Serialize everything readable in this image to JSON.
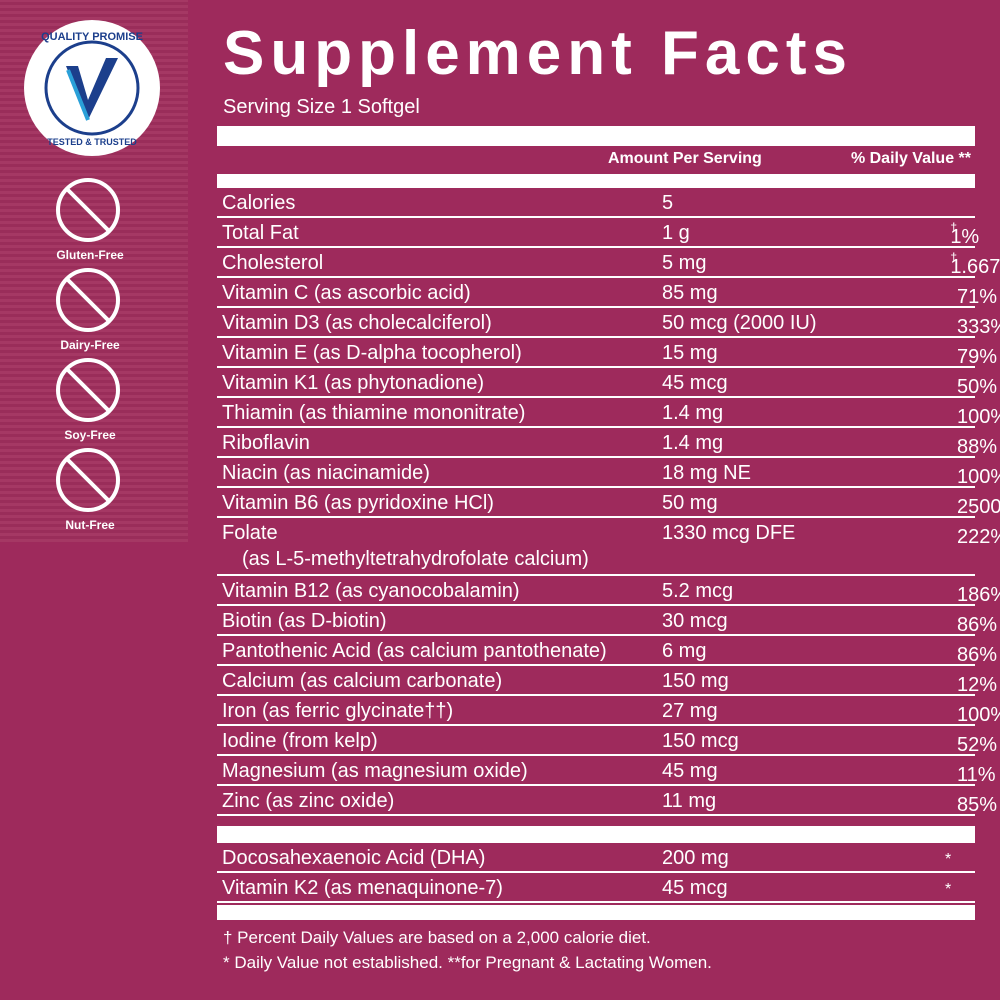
{
  "badges": {
    "quality": {
      "top": "QUALITY PROMISE",
      "bottom": "TESTED & TRUSTED"
    },
    "items": [
      "Gluten-Free",
      "Dairy-Free",
      "Soy-Free",
      "Nut-Free"
    ]
  },
  "header": {
    "title": "Supplement Facts",
    "serving_size": "Serving Size 1 Softgel",
    "amount_heading": "Amount Per Serving",
    "dv_heading": "% Daily Value **"
  },
  "rows": [
    {
      "name": "Calories",
      "amount": "5",
      "dv": ""
    },
    {
      "name": "Total Fat",
      "amount": "1 g",
      "dv": "1%",
      "mark": "†"
    },
    {
      "name": "Cholesterol",
      "amount": "5 mg",
      "dv": "1.667%",
      "mark": "†"
    },
    {
      "name": "Vitamin C (as ascorbic acid)",
      "amount": "85 mg",
      "dv": "71%"
    },
    {
      "name": "Vitamin D3 (as cholecalciferol)",
      "amount": "50 mcg (2000 IU)",
      "dv": "333%"
    },
    {
      "name": "Vitamin E (as D-alpha tocopherol)",
      "amount": "15 mg",
      "dv": "79%"
    },
    {
      "name": "Vitamin K1 (as phytonadione)",
      "amount": "45 mcg",
      "dv": "50%"
    },
    {
      "name": "Thiamin (as thiamine mononitrate)",
      "amount": "1.4 mg",
      "dv": "100%"
    },
    {
      "name": "Riboflavin",
      "amount": "1.4 mg",
      "dv": "88%"
    },
    {
      "name": "Niacin (as niacinamide)",
      "amount": "18 mg NE",
      "dv": "100%"
    },
    {
      "name": "Vitamin B6 (as pyridoxine HCl)",
      "amount": "50 mg",
      "dv": "2500%"
    },
    {
      "name": "Folate",
      "detail": "(as L-5-methyltetrahydrofolate calcium)",
      "amount": "1330 mcg DFE",
      "dv": "222%"
    },
    {
      "name": "Vitamin B12 (as cyanocobalamin)",
      "amount": "5.2 mcg",
      "dv": "186%"
    },
    {
      "name": "Biotin (as D-biotin)",
      "amount": "30 mcg",
      "dv": "86%"
    },
    {
      "name": "Pantothenic Acid (as calcium pantothenate)",
      "amount": "6 mg",
      "dv": "86%"
    },
    {
      "name": "Calcium (as calcium carbonate)",
      "amount": "150 mg",
      "dv": "12%"
    },
    {
      "name": "Iron (as ferric glycinate††)",
      "amount": "27 mg",
      "dv": "100%"
    },
    {
      "name": "Iodine (from kelp)",
      "amount": "150 mcg",
      "dv": "52%"
    },
    {
      "name": "Magnesium (as magnesium oxide)",
      "amount": "45 mg",
      "dv": "11%"
    },
    {
      "name": "Zinc (as zinc oxide)",
      "amount": "11 mg",
      "dv": "85%"
    }
  ],
  "other_rows": [
    {
      "name": "Docosahexaenoic Acid (DHA)",
      "amount": "200 mg",
      "dv": "*"
    },
    {
      "name": "Vitamin K2 (as menaquinone-7)",
      "amount": "45 mcg",
      "dv": "*"
    }
  ],
  "footnotes": [
    "† Percent Daily Values are based on a 2,000 calorie diet.",
    "* Daily Value not established.  **for Pregnant & Lactating Women."
  ]
}
